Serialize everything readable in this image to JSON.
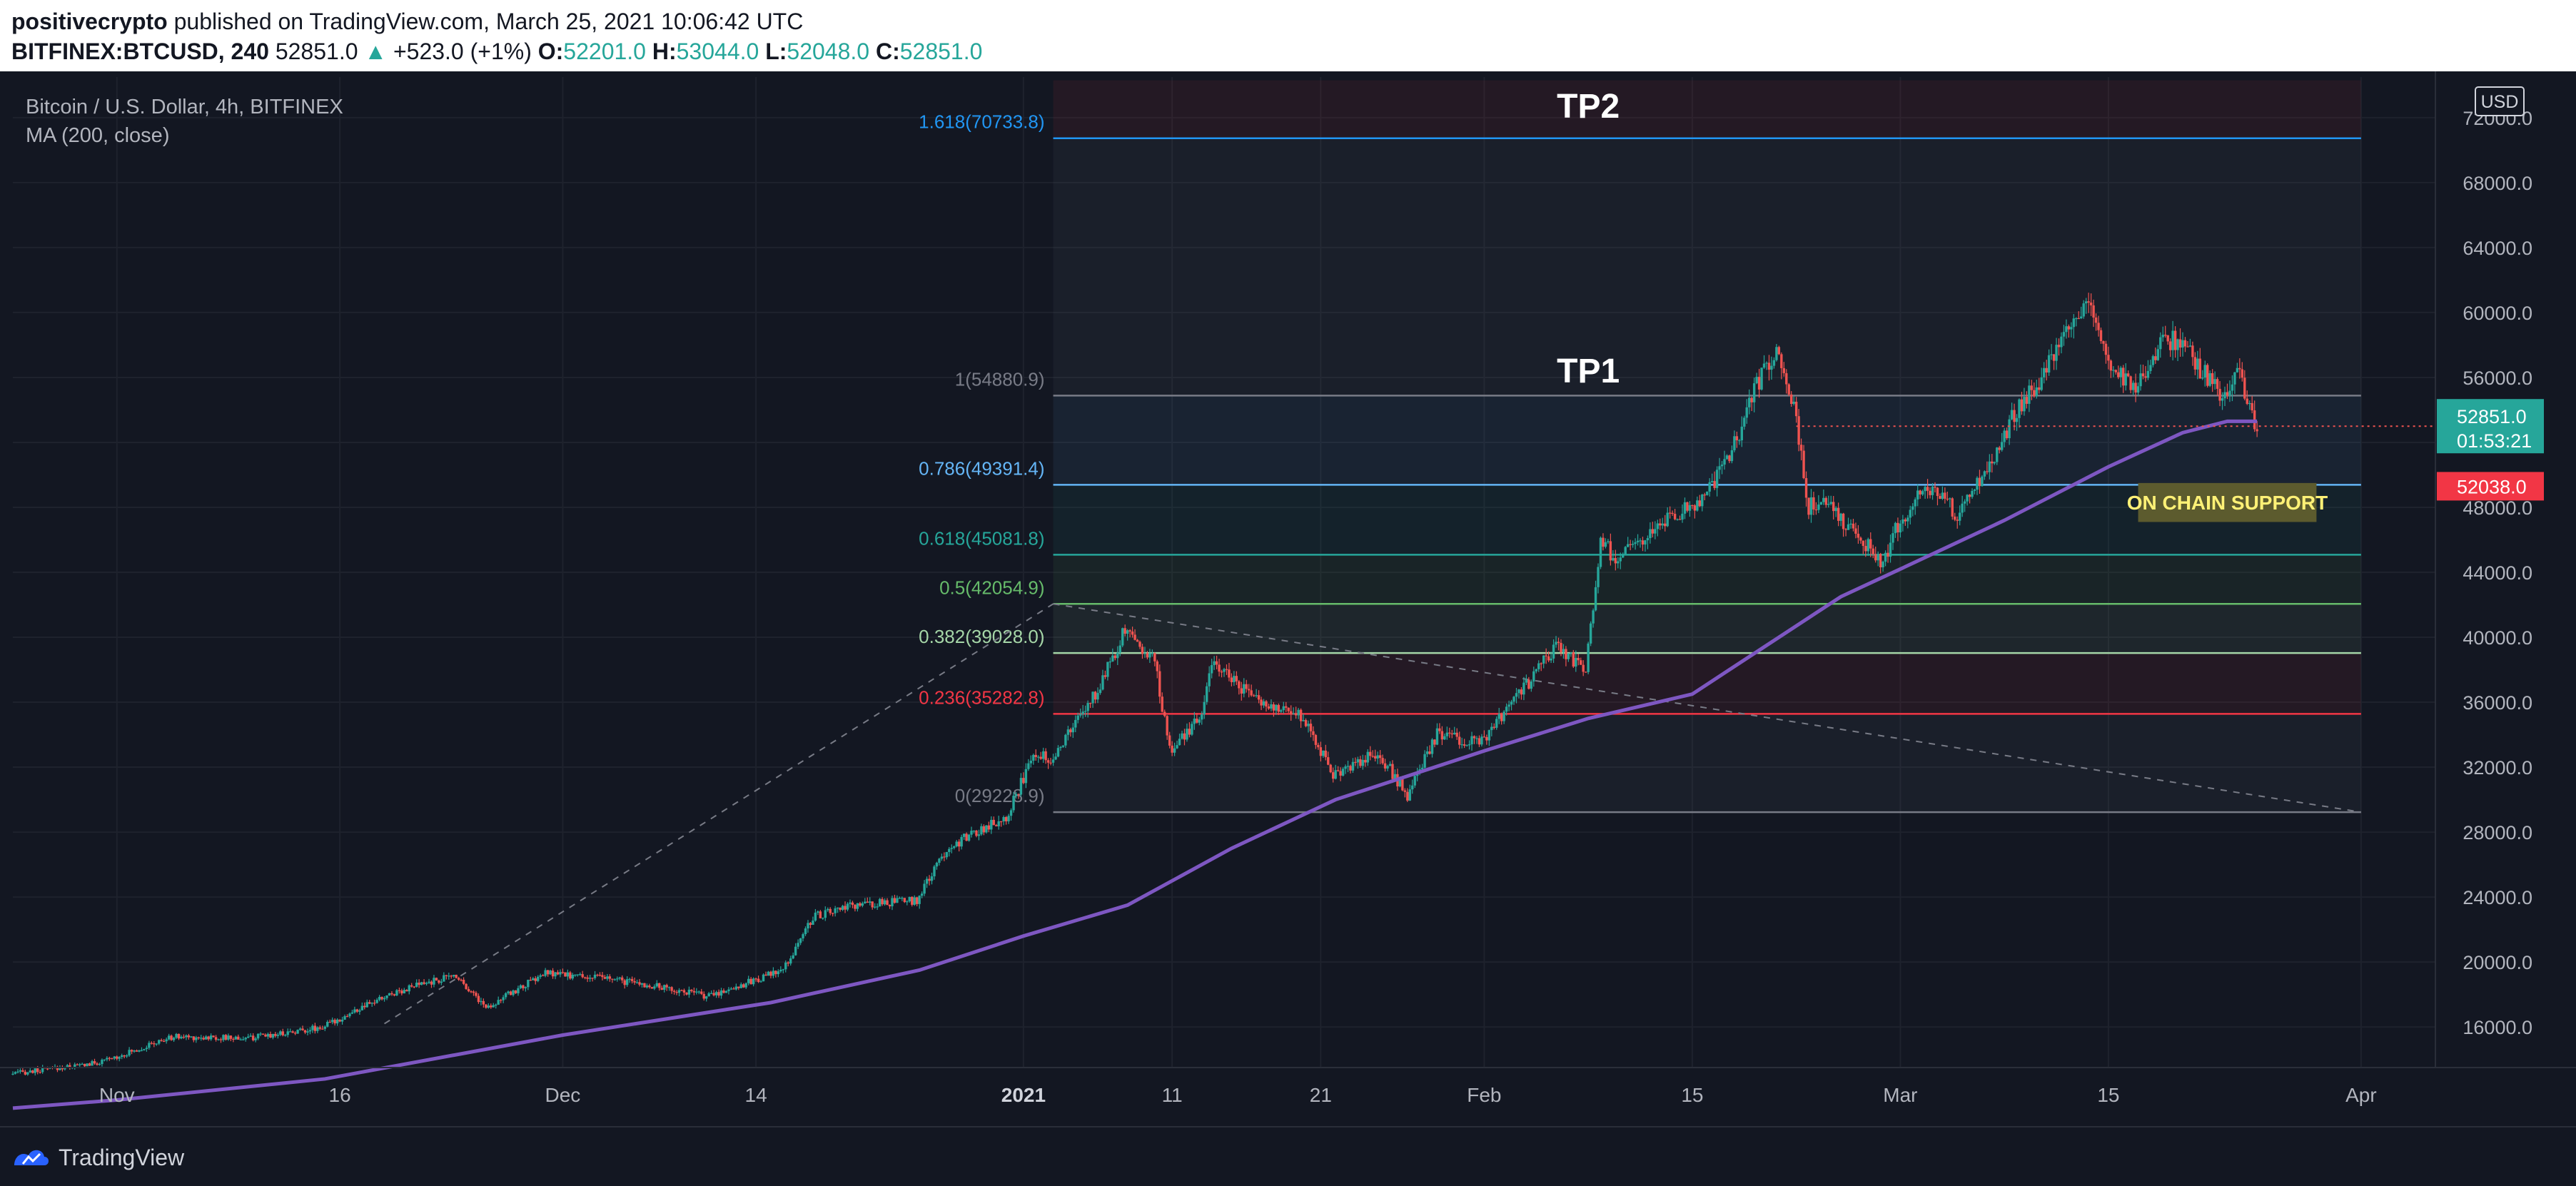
{
  "header": {
    "author": "positivecrypto",
    "published_text": "published on TradingView.com, March 25, 2021 10:06:42 UTC",
    "symbol": "BITFINEX:BTCUSD, 240",
    "last": "52851.0",
    "change": "+523.0 (+1%)",
    "open_label": "O:",
    "open": "52201.0",
    "high_label": "H:",
    "high": "53044.0",
    "low_label": "L:",
    "low": "52048.0",
    "close_label": "C:",
    "close": "52851.0"
  },
  "legend": {
    "title": "Bitcoin / U.S. Dollar, 4h, BITFINEX",
    "indicator": "MA (200, close)"
  },
  "footer": {
    "brand": "TradingView",
    "brand_icon": "tradingview-logo-icon"
  },
  "colors": {
    "background": "#131722",
    "grid": "#1e222d",
    "up": "#26a69a",
    "down": "#ef5350",
    "ma": "#7e57c2",
    "axis_text": "#b2b5be"
  },
  "chart_data": {
    "type": "candlestick",
    "currency": "USD",
    "ylim": [
      13500,
      74500
    ],
    "x_range": [
      "2020-10-25",
      "2021-04-06"
    ],
    "y_ticks": [
      "16000.0",
      "20000.0",
      "24000.0",
      "28000.0",
      "32000.0",
      "36000.0",
      "40000.0",
      "44000.0",
      "48000.0",
      "52000.0",
      "56000.0",
      "60000.0",
      "64000.0",
      "68000.0",
      "72000.0"
    ],
    "x_ticks": [
      {
        "date": "2020-11-01",
        "label": "Nov",
        "bold": false
      },
      {
        "date": "2020-11-16",
        "label": "16",
        "bold": false
      },
      {
        "date": "2020-12-01",
        "label": "Dec",
        "bold": false
      },
      {
        "date": "2020-12-14",
        "label": "14",
        "bold": false
      },
      {
        "date": "2021-01-01",
        "label": "2021",
        "bold": true
      },
      {
        "date": "2021-01-11",
        "label": "11",
        "bold": false
      },
      {
        "date": "2021-01-21",
        "label": "21",
        "bold": false
      },
      {
        "date": "2021-02-01",
        "label": "Feb",
        "bold": false
      },
      {
        "date": "2021-02-15",
        "label": "15",
        "bold": false
      },
      {
        "date": "2021-03-01",
        "label": "Mar",
        "bold": false
      },
      {
        "date": "2021-03-15",
        "label": "15",
        "bold": false
      },
      {
        "date": "2021-04-01",
        "label": "Apr",
        "bold": false
      }
    ],
    "price_anchors": [
      [
        "2020-10-25",
        13100
      ],
      [
        "2020-10-31",
        13800
      ],
      [
        "2020-11-05",
        15400
      ],
      [
        "2020-11-10",
        15300
      ],
      [
        "2020-11-15",
        16000
      ],
      [
        "2020-11-20",
        18200
      ],
      [
        "2020-11-24",
        19200
      ],
      [
        "2020-11-26",
        17200
      ],
      [
        "2020-11-30",
        19300
      ],
      [
        "2020-12-04",
        19000
      ],
      [
        "2020-12-08",
        18400
      ],
      [
        "2020-12-11",
        17900
      ],
      [
        "2020-12-16",
        19500
      ],
      [
        "2020-12-18",
        22800
      ],
      [
        "2020-12-21",
        23500
      ],
      [
        "2020-12-25",
        23800
      ],
      [
        "2020-12-27",
        27000
      ],
      [
        "2020-12-31",
        29000
      ],
      [
        "2021-01-02",
        33000
      ],
      [
        "2021-01-03",
        32500
      ],
      [
        "2021-01-06",
        36500
      ],
      [
        "2021-01-08",
        40500
      ],
      [
        "2021-01-10",
        38500
      ],
      [
        "2021-01-11",
        33000
      ],
      [
        "2021-01-13",
        35000
      ],
      [
        "2021-01-14",
        38500
      ],
      [
        "2021-01-17",
        36000
      ],
      [
        "2021-01-20",
        35200
      ],
      [
        "2021-01-22",
        31500
      ],
      [
        "2021-01-25",
        33000
      ],
      [
        "2021-01-27",
        30200
      ],
      [
        "2021-01-29",
        34000
      ],
      [
        "2021-02-01",
        33500
      ],
      [
        "2021-02-04",
        37000
      ],
      [
        "2021-02-06",
        39500
      ],
      [
        "2021-02-08",
        38000
      ],
      [
        "2021-02-09",
        46000
      ],
      [
        "2021-02-10",
        44800
      ],
      [
        "2021-02-14",
        47500
      ],
      [
        "2021-02-16",
        48500
      ],
      [
        "2021-02-18",
        52000
      ],
      [
        "2021-02-20",
        56500
      ],
      [
        "2021-02-21",
        57500
      ],
      [
        "2021-02-22",
        54000
      ],
      [
        "2021-02-23",
        48000
      ],
      [
        "2021-02-24",
        48500
      ],
      [
        "2021-02-26",
        46500
      ],
      [
        "2021-02-28",
        44500
      ],
      [
        "2021-03-01",
        47000
      ],
      [
        "2021-03-03",
        49500
      ],
      [
        "2021-03-05",
        47500
      ],
      [
        "2021-03-07",
        50500
      ],
      [
        "2021-03-09",
        54000
      ],
      [
        "2021-03-11",
        56500
      ],
      [
        "2021-03-13",
        59500
      ],
      [
        "2021-03-14",
        60500
      ],
      [
        "2021-03-15",
        57000
      ],
      [
        "2021-03-17",
        55500
      ],
      [
        "2021-03-19",
        58500
      ],
      [
        "2021-03-20",
        58000
      ],
      [
        "2021-03-21",
        57000
      ],
      [
        "2021-03-23",
        54500
      ],
      [
        "2021-03-24",
        56500
      ],
      [
        "2021-03-25",
        52800
      ]
    ],
    "ma200_anchors": [
      [
        "2020-10-25",
        11000
      ],
      [
        "2020-11-01",
        11500
      ],
      [
        "2020-11-15",
        12800
      ],
      [
        "2020-12-01",
        15500
      ],
      [
        "2020-12-15",
        17500
      ],
      [
        "2020-12-25",
        19500
      ],
      [
        "2021-01-01",
        21600
      ],
      [
        "2021-01-08",
        23500
      ],
      [
        "2021-01-15",
        27000
      ],
      [
        "2021-01-22",
        30000
      ],
      [
        "2021-02-01",
        33000
      ],
      [
        "2021-02-08",
        35000
      ],
      [
        "2021-02-15",
        36500
      ],
      [
        "2021-02-20",
        39500
      ],
      [
        "2021-02-25",
        42500
      ],
      [
        "2021-03-01",
        44200
      ],
      [
        "2021-03-08",
        47200
      ],
      [
        "2021-03-15",
        50500
      ],
      [
        "2021-03-20",
        52600
      ],
      [
        "2021-03-23",
        53300
      ],
      [
        "2021-03-25",
        53300
      ]
    ],
    "fib_retracement": {
      "start_date": "2021-01-03",
      "end_date": "2021-04-01",
      "levels": [
        {
          "label": "1.618(70733.8)",
          "price": 70733.8,
          "color": "#2196f3"
        },
        {
          "label": "1(54880.9)",
          "price": 54880.9,
          "color": "#787b86"
        },
        {
          "label": "0.786(49391.4)",
          "price": 49391.4,
          "color": "#64b5f6"
        },
        {
          "label": "0.618(45081.8)",
          "price": 45081.8,
          "color": "#26a69a"
        },
        {
          "label": "0.5(42054.9)",
          "price": 42054.9,
          "color": "#66bb6a"
        },
        {
          "label": "0.382(39028.0)",
          "price": 39028.0,
          "color": "#a5d6a7"
        },
        {
          "label": "0.236(35282.8)",
          "price": 35282.8,
          "color": "#f23645"
        },
        {
          "label": "0(29228.9)",
          "price": 29228.9,
          "color": "#787b86"
        }
      ]
    },
    "trendlines": [
      {
        "from": [
          "2020-11-19",
          16200
        ],
        "to": [
          "2021-01-03",
          42054.9
        ]
      },
      {
        "from": [
          "2021-01-03",
          42054.9
        ],
        "to": [
          "2021-04-01",
          29228.9
        ]
      }
    ],
    "annotations": [
      {
        "text": "TP2",
        "date": "2021-02-08",
        "price": 72000
      },
      {
        "text": "TP1",
        "date": "2021-02-08",
        "price": 55700
      }
    ],
    "support_label": {
      "text": "ON CHAIN SUPPORT",
      "date_from": "2021-03-17",
      "date_to": "2021-03-29",
      "price_top": 49500,
      "price_bottom": 47100
    },
    "price_line": {
      "price": 53000,
      "date_from": "2021-02-22"
    },
    "price_badges": [
      {
        "value": "52851.0",
        "sub": "01:53:21",
        "price": 53000,
        "color": "#26a69a"
      },
      {
        "value": "52038.0",
        "price": 49300,
        "color": "#f23645"
      }
    ]
  }
}
